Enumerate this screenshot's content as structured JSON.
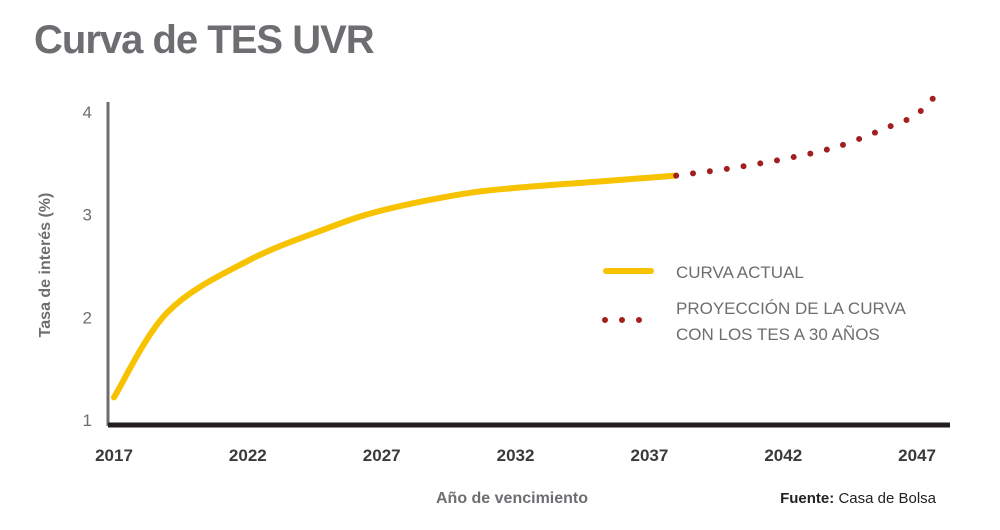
{
  "chart_data": {
    "type": "line",
    "title": "Curva de TES UVR",
    "xlabel": "Año de vencimiento",
    "ylabel": "Tasa de interés (%)",
    "xlim": [
      2017,
      2048
    ],
    "ylim": [
      1,
      4
    ],
    "x_ticks": [
      "2017",
      "2022",
      "2027",
      "2032",
      "2037",
      "2042",
      "2047"
    ],
    "y_ticks": [
      "1",
      "2",
      "3",
      "4"
    ],
    "grid": false,
    "legend_position": "right",
    "series": [
      {
        "name": "CURVA ACTUAL",
        "style": "solid",
        "color": "#f7c200",
        "points": [
          [
            2017,
            1.22
          ],
          [
            2019,
            2.05
          ],
          [
            2022,
            2.55
          ],
          [
            2025,
            2.87
          ],
          [
            2027,
            3.04
          ],
          [
            2030,
            3.2
          ],
          [
            2032,
            3.26
          ],
          [
            2035,
            3.32
          ],
          [
            2038,
            3.38
          ]
        ]
      },
      {
        "name": "PROYECCIÓN DE LA CURVA",
        "name_line2": "CON LOS TES A 30 AÑOS",
        "style": "dotted",
        "color": "#a31f1f",
        "points": [
          [
            2038,
            3.38
          ],
          [
            2040,
            3.45
          ],
          [
            2042,
            3.54
          ],
          [
            2044,
            3.66
          ],
          [
            2046,
            3.86
          ],
          [
            2047,
            3.98
          ],
          [
            2047.9,
            4.22
          ]
        ]
      }
    ],
    "source_label": "Fuente:",
    "source_value": "Casa de Bolsa"
  }
}
